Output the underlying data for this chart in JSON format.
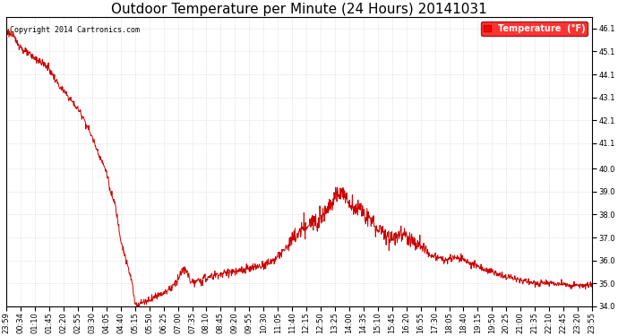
{
  "title": "Outdoor Temperature per Minute (24 Hours) 20141031",
  "copyright_text": "Copyright 2014 Cartronics.com",
  "legend_label": "Temperature  (°F)",
  "ylim": [
    34.0,
    46.6
  ],
  "yticks": [
    34.0,
    35.0,
    36.0,
    37.0,
    38.0,
    39.0,
    40.0,
    41.1,
    42.1,
    43.1,
    44.1,
    45.1,
    46.1
  ],
  "background_color": "#ffffff",
  "plot_bg_color": "#ffffff",
  "grid_color": "#cccccc",
  "line_color": "#cc0000",
  "title_fontsize": 11,
  "tick_fontsize": 6,
  "copyright_fontsize": 6,
  "legend_fontsize": 7,
  "x_tick_labels": [
    "23:59",
    "00:34",
    "01:10",
    "01:45",
    "02:20",
    "02:55",
    "03:30",
    "04:05",
    "04:40",
    "05:15",
    "05:50",
    "06:25",
    "07:00",
    "07:35",
    "08:10",
    "08:45",
    "09:20",
    "09:55",
    "10:30",
    "11:05",
    "11:40",
    "12:15",
    "12:50",
    "13:25",
    "14:00",
    "14:35",
    "15:10",
    "15:45",
    "16:20",
    "16:55",
    "17:30",
    "18:05",
    "18:40",
    "19:15",
    "19:50",
    "20:25",
    "21:00",
    "21:35",
    "22:10",
    "22:45",
    "23:20",
    "23:55"
  ],
  "n_points": 1440
}
